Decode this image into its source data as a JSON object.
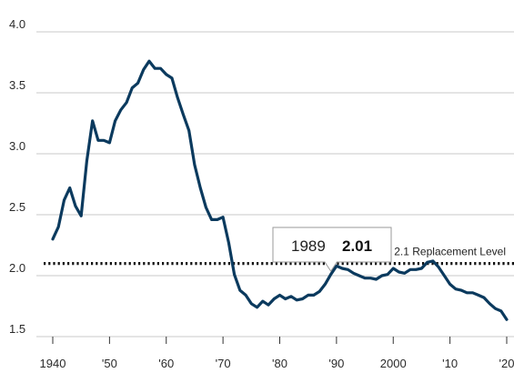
{
  "chart_data": {
    "type": "line",
    "title": "",
    "xlabel": "",
    "ylabel": "",
    "xlim": [
      1940,
      2020
    ],
    "ylim": [
      1.5,
      4.0
    ],
    "yticks": [
      {
        "value": 4.0,
        "label": "4.0"
      },
      {
        "value": 3.5,
        "label": "3.5"
      },
      {
        "value": 3.0,
        "label": "3.0"
      },
      {
        "value": 2.5,
        "label": "2.5"
      },
      {
        "value": 2.0,
        "label": "2.0"
      },
      {
        "value": 1.5,
        "label": "1.5"
      }
    ],
    "xticks": [
      {
        "value": 1940,
        "label": "1940"
      },
      {
        "value": 1950,
        "label": "'50"
      },
      {
        "value": 1960,
        "label": "'60"
      },
      {
        "value": 1970,
        "label": "'70"
      },
      {
        "value": 1980,
        "label": "'80"
      },
      {
        "value": 1990,
        "label": "'90"
      },
      {
        "value": 2000,
        "label": "2000"
      },
      {
        "value": 2010,
        "label": "'10"
      },
      {
        "value": 2020,
        "label": "'20"
      }
    ],
    "grid": true,
    "series": [
      {
        "color": "#0b3a5e",
        "x": [
          1940,
          1941,
          1942,
          1943,
          1944,
          1945,
          1946,
          1947,
          1948,
          1949,
          1950,
          1951,
          1952,
          1953,
          1954,
          1955,
          1956,
          1957,
          1958,
          1959,
          1960,
          1961,
          1962,
          1963,
          1964,
          1965,
          1966,
          1967,
          1968,
          1969,
          1970,
          1971,
          1972,
          1973,
          1974,
          1975,
          1976,
          1977,
          1978,
          1979,
          1980,
          1981,
          1982,
          1983,
          1984,
          1985,
          1986,
          1987,
          1988,
          1989,
          1990,
          1991,
          1992,
          1993,
          1994,
          1995,
          1996,
          1997,
          1998,
          1999,
          2000,
          2001,
          2002,
          2003,
          2004,
          2005,
          2006,
          2007,
          2008,
          2009,
          2010,
          2011,
          2012,
          2013,
          2014,
          2015,
          2016,
          2017,
          2018,
          2019,
          2020
        ],
        "y": [
          2.3,
          2.4,
          2.62,
          2.72,
          2.57,
          2.49,
          2.94,
          3.27,
          3.11,
          3.11,
          3.09,
          3.27,
          3.36,
          3.42,
          3.54,
          3.58,
          3.69,
          3.76,
          3.7,
          3.7,
          3.65,
          3.62,
          3.46,
          3.32,
          3.19,
          2.91,
          2.72,
          2.56,
          2.46,
          2.46,
          2.48,
          2.27,
          2.01,
          1.88,
          1.84,
          1.77,
          1.74,
          1.79,
          1.76,
          1.81,
          1.84,
          1.81,
          1.83,
          1.8,
          1.81,
          1.84,
          1.84,
          1.87,
          1.93,
          2.01,
          2.08,
          2.06,
          2.05,
          2.02,
          2.0,
          1.98,
          1.98,
          1.97,
          2.0,
          2.01,
          2.06,
          2.03,
          2.02,
          2.05,
          2.05,
          2.06,
          2.11,
          2.12,
          2.07,
          2.0,
          1.93,
          1.89,
          1.88,
          1.86,
          1.86,
          1.84,
          1.82,
          1.77,
          1.73,
          1.71,
          1.64
        ]
      }
    ],
    "reference_line": {
      "value": 2.1,
      "label": "2.1 Replacement Level"
    },
    "highlight": {
      "x": 1989,
      "y": 2.01,
      "year_label": "1989",
      "value_label": "2.01"
    }
  }
}
